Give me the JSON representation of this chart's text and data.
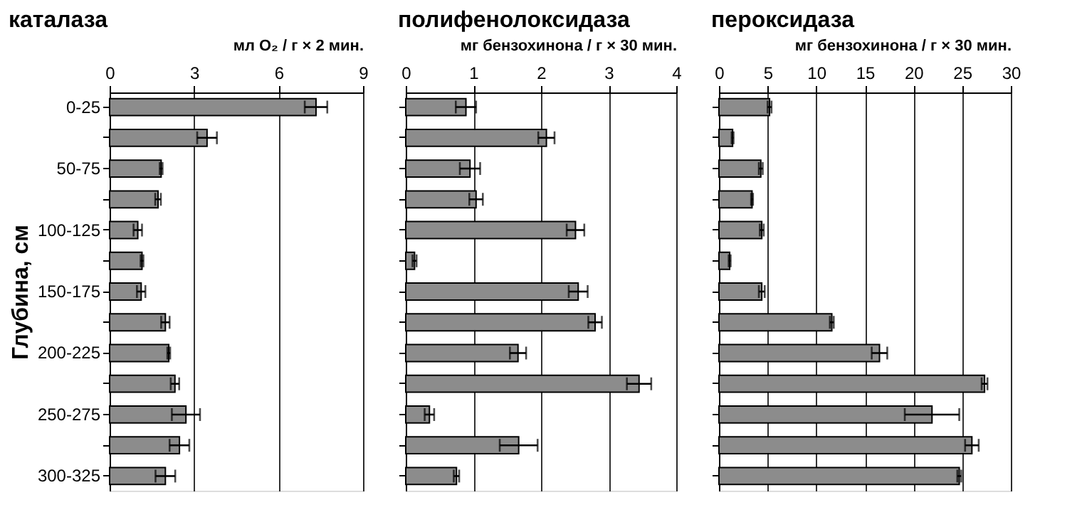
{
  "chart_data": [
    {
      "type": "bar",
      "orientation": "horizontal",
      "title": "каталаза",
      "xlabel": "мл O₂ / г × 2 мин.",
      "ylabel": "Глубина, см",
      "categories": [
        "0-25",
        null,
        "50-75",
        null,
        "100-125",
        null,
        "150-175",
        null,
        "200-225",
        null,
        "250-275",
        null,
        "300-325"
      ],
      "values": [
        7.33,
        3.46,
        1.83,
        1.72,
        1.0,
        1.15,
        1.12,
        1.98,
        2.1,
        2.32,
        2.71,
        2.48,
        1.98
      ],
      "errors": [
        0.4,
        0.35,
        0.05,
        0.1,
        0.15,
        0.05,
        0.15,
        0.15,
        0.05,
        0.15,
        0.5,
        0.35,
        0.35
      ],
      "color": "#8c8c8c",
      "xlim": [
        0,
        9
      ],
      "xticks": [
        0,
        3,
        6,
        9
      ],
      "grid": "x"
    },
    {
      "type": "bar",
      "orientation": "horizontal",
      "title": "полифенолоксидаза",
      "xlabel": "мг бензохинона / г × 30 мин.",
      "categories": [
        null,
        null,
        null,
        null,
        null,
        null,
        null,
        null,
        null,
        null,
        null,
        null,
        null
      ],
      "values": [
        0.89,
        2.08,
        0.95,
        1.04,
        2.51,
        0.13,
        2.55,
        2.8,
        1.66,
        3.45,
        0.35,
        1.67,
        0.75
      ],
      "errors": [
        0.15,
        0.12,
        0.15,
        0.1,
        0.13,
        0.03,
        0.14,
        0.1,
        0.12,
        0.18,
        0.07,
        0.28,
        0.04
      ],
      "color": "#8c8c8c",
      "xlim": [
        0,
        4
      ],
      "xticks": [
        0,
        1,
        2,
        3,
        4
      ],
      "grid": "x",
      "tick_labels": "x"
    },
    {
      "type": "bar",
      "orientation": "horizontal",
      "title": "пероксидаза",
      "xlabel": "мг бензохинона / г × 30 мин.",
      "categories": [
        null,
        null,
        null,
        null,
        null,
        null,
        null,
        null,
        null,
        null,
        null,
        null,
        null
      ],
      "values": [
        5.2,
        1.4,
        4.3,
        3.4,
        4.4,
        1.1,
        4.4,
        11.6,
        16.5,
        27.3,
        21.9,
        26.0,
        24.7
      ],
      "errors": [
        0.2,
        0.1,
        0.2,
        0.1,
        0.2,
        0.1,
        0.3,
        0.2,
        0.8,
        0.3,
        2.8,
        0.7,
        0.2
      ],
      "color": "#8c8c8c",
      "xlim": [
        0,
        30
      ],
      "xticks": [
        0,
        5,
        10,
        15,
        20,
        25,
        30
      ],
      "grid": "x",
      "tick_labels": "x"
    }
  ]
}
